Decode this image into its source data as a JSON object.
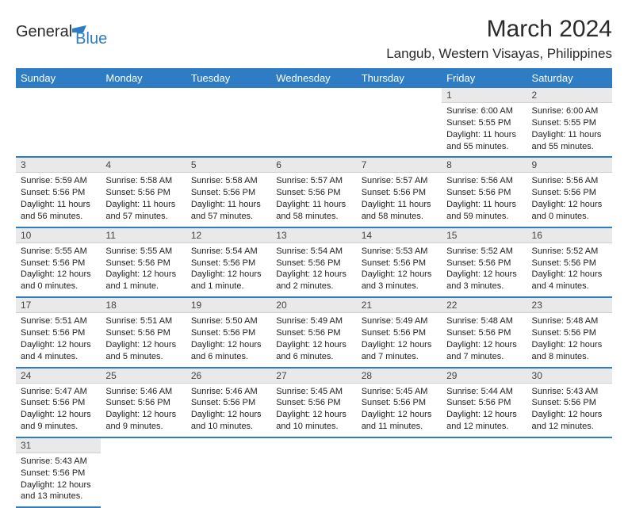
{
  "logo": {
    "general": "General",
    "blue": "Blue"
  },
  "header": {
    "month_title": "March 2024",
    "location": "Langub, Western Visayas, Philippines"
  },
  "calendar": {
    "header_bg": "#2e7cc4",
    "header_fg": "#ffffff",
    "daynum_bg": "#e9e9e9",
    "row_border": "#2e7cc4",
    "day_labels": [
      "Sunday",
      "Monday",
      "Tuesday",
      "Wednesday",
      "Thursday",
      "Friday",
      "Saturday"
    ],
    "weeks": [
      [
        null,
        null,
        null,
        null,
        null,
        {
          "n": "1",
          "sr": "Sunrise: 6:00 AM",
          "ss": "Sunset: 5:55 PM",
          "dl": "Daylight: 11 hours and 55 minutes."
        },
        {
          "n": "2",
          "sr": "Sunrise: 6:00 AM",
          "ss": "Sunset: 5:55 PM",
          "dl": "Daylight: 11 hours and 55 minutes."
        }
      ],
      [
        {
          "n": "3",
          "sr": "Sunrise: 5:59 AM",
          "ss": "Sunset: 5:56 PM",
          "dl": "Daylight: 11 hours and 56 minutes."
        },
        {
          "n": "4",
          "sr": "Sunrise: 5:58 AM",
          "ss": "Sunset: 5:56 PM",
          "dl": "Daylight: 11 hours and 57 minutes."
        },
        {
          "n": "5",
          "sr": "Sunrise: 5:58 AM",
          "ss": "Sunset: 5:56 PM",
          "dl": "Daylight: 11 hours and 57 minutes."
        },
        {
          "n": "6",
          "sr": "Sunrise: 5:57 AM",
          "ss": "Sunset: 5:56 PM",
          "dl": "Daylight: 11 hours and 58 minutes."
        },
        {
          "n": "7",
          "sr": "Sunrise: 5:57 AM",
          "ss": "Sunset: 5:56 PM",
          "dl": "Daylight: 11 hours and 58 minutes."
        },
        {
          "n": "8",
          "sr": "Sunrise: 5:56 AM",
          "ss": "Sunset: 5:56 PM",
          "dl": "Daylight: 11 hours and 59 minutes."
        },
        {
          "n": "9",
          "sr": "Sunrise: 5:56 AM",
          "ss": "Sunset: 5:56 PM",
          "dl": "Daylight: 12 hours and 0 minutes."
        }
      ],
      [
        {
          "n": "10",
          "sr": "Sunrise: 5:55 AM",
          "ss": "Sunset: 5:56 PM",
          "dl": "Daylight: 12 hours and 0 minutes."
        },
        {
          "n": "11",
          "sr": "Sunrise: 5:55 AM",
          "ss": "Sunset: 5:56 PM",
          "dl": "Daylight: 12 hours and 1 minute."
        },
        {
          "n": "12",
          "sr": "Sunrise: 5:54 AM",
          "ss": "Sunset: 5:56 PM",
          "dl": "Daylight: 12 hours and 1 minute."
        },
        {
          "n": "13",
          "sr": "Sunrise: 5:54 AM",
          "ss": "Sunset: 5:56 PM",
          "dl": "Daylight: 12 hours and 2 minutes."
        },
        {
          "n": "14",
          "sr": "Sunrise: 5:53 AM",
          "ss": "Sunset: 5:56 PM",
          "dl": "Daylight: 12 hours and 3 minutes."
        },
        {
          "n": "15",
          "sr": "Sunrise: 5:52 AM",
          "ss": "Sunset: 5:56 PM",
          "dl": "Daylight: 12 hours and 3 minutes."
        },
        {
          "n": "16",
          "sr": "Sunrise: 5:52 AM",
          "ss": "Sunset: 5:56 PM",
          "dl": "Daylight: 12 hours and 4 minutes."
        }
      ],
      [
        {
          "n": "17",
          "sr": "Sunrise: 5:51 AM",
          "ss": "Sunset: 5:56 PM",
          "dl": "Daylight: 12 hours and 4 minutes."
        },
        {
          "n": "18",
          "sr": "Sunrise: 5:51 AM",
          "ss": "Sunset: 5:56 PM",
          "dl": "Daylight: 12 hours and 5 minutes."
        },
        {
          "n": "19",
          "sr": "Sunrise: 5:50 AM",
          "ss": "Sunset: 5:56 PM",
          "dl": "Daylight: 12 hours and 6 minutes."
        },
        {
          "n": "20",
          "sr": "Sunrise: 5:49 AM",
          "ss": "Sunset: 5:56 PM",
          "dl": "Daylight: 12 hours and 6 minutes."
        },
        {
          "n": "21",
          "sr": "Sunrise: 5:49 AM",
          "ss": "Sunset: 5:56 PM",
          "dl": "Daylight: 12 hours and 7 minutes."
        },
        {
          "n": "22",
          "sr": "Sunrise: 5:48 AM",
          "ss": "Sunset: 5:56 PM",
          "dl": "Daylight: 12 hours and 7 minutes."
        },
        {
          "n": "23",
          "sr": "Sunrise: 5:48 AM",
          "ss": "Sunset: 5:56 PM",
          "dl": "Daylight: 12 hours and 8 minutes."
        }
      ],
      [
        {
          "n": "24",
          "sr": "Sunrise: 5:47 AM",
          "ss": "Sunset: 5:56 PM",
          "dl": "Daylight: 12 hours and 9 minutes."
        },
        {
          "n": "25",
          "sr": "Sunrise: 5:46 AM",
          "ss": "Sunset: 5:56 PM",
          "dl": "Daylight: 12 hours and 9 minutes."
        },
        {
          "n": "26",
          "sr": "Sunrise: 5:46 AM",
          "ss": "Sunset: 5:56 PM",
          "dl": "Daylight: 12 hours and 10 minutes."
        },
        {
          "n": "27",
          "sr": "Sunrise: 5:45 AM",
          "ss": "Sunset: 5:56 PM",
          "dl": "Daylight: 12 hours and 10 minutes."
        },
        {
          "n": "28",
          "sr": "Sunrise: 5:45 AM",
          "ss": "Sunset: 5:56 PM",
          "dl": "Daylight: 12 hours and 11 minutes."
        },
        {
          "n": "29",
          "sr": "Sunrise: 5:44 AM",
          "ss": "Sunset: 5:56 PM",
          "dl": "Daylight: 12 hours and 12 minutes."
        },
        {
          "n": "30",
          "sr": "Sunrise: 5:43 AM",
          "ss": "Sunset: 5:56 PM",
          "dl": "Daylight: 12 hours and 12 minutes."
        }
      ],
      [
        {
          "n": "31",
          "sr": "Sunrise: 5:43 AM",
          "ss": "Sunset: 5:56 PM",
          "dl": "Daylight: 12 hours and 13 minutes."
        },
        null,
        null,
        null,
        null,
        null,
        null
      ]
    ]
  }
}
